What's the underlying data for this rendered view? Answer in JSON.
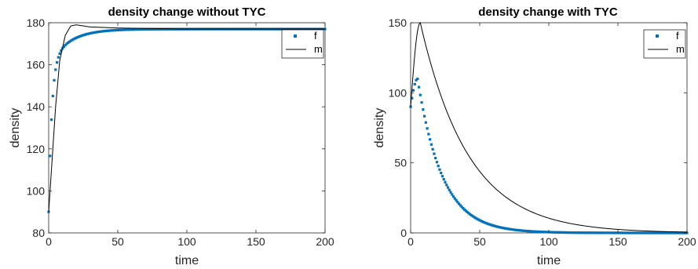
{
  "chart_data": [
    {
      "type": "scatter",
      "title": "density change without TYC",
      "xlabel": "time",
      "ylabel": "density",
      "xlim": [
        0,
        200
      ],
      "ylim": [
        80,
        180
      ],
      "xticks": [
        "0",
        "50",
        "100",
        "150",
        "200"
      ],
      "yticks": [
        "80",
        "100",
        "120",
        "140",
        "160",
        "180"
      ],
      "grid": false,
      "legend_position": "top-right",
      "series": [
        {
          "name": "f",
          "kind": "markers",
          "color": "#0072BD",
          "model": {
            "form": "saturating",
            "y0": 90,
            "ymax": 177,
            "tau_fast": 2.2,
            "tau_slow": 14,
            "w_fast": 0.8
          },
          "x": [
            0,
            1,
            2,
            3,
            4,
            5,
            6,
            8,
            10,
            12,
            15,
            20,
            30,
            50,
            100,
            150,
            200
          ],
          "y": [
            90,
            94,
            101,
            105,
            120,
            135,
            148,
            157,
            162,
            166,
            169,
            172,
            175,
            176.5,
            177,
            177,
            177
          ]
        },
        {
          "name": "m",
          "kind": "line",
          "color": "#000000",
          "x": [
            0,
            2,
            5,
            8,
            12,
            16,
            20,
            30,
            50,
            100,
            200
          ],
          "y": [
            90,
            110,
            140,
            162,
            174,
            178.5,
            179,
            178,
            177.5,
            177,
            177
          ]
        }
      ]
    },
    {
      "type": "scatter",
      "title": "density change with TYC",
      "xlabel": "time",
      "ylabel": "density",
      "xlim": [
        0,
        200
      ],
      "ylim": [
        0,
        150
      ],
      "xticks": [
        "0",
        "50",
        "100",
        "150",
        "200"
      ],
      "yticks": [
        "0",
        "50",
        "100",
        "150"
      ],
      "grid": false,
      "legend_position": "top-right",
      "series": [
        {
          "name": "f",
          "kind": "markers",
          "color": "#0072BD",
          "model": {
            "form": "rise-decay",
            "y0": 90,
            "peak": 110,
            "t_peak": 5,
            "tau": 18
          },
          "x": [
            0,
            2,
            5,
            10,
            20,
            30,
            50,
            75,
            100,
            150,
            200
          ],
          "y": [
            90,
            100,
            110,
            96,
            56,
            33,
            11,
            3,
            1,
            0,
            0
          ]
        },
        {
          "name": "m",
          "kind": "line",
          "color": "#000000",
          "model": {
            "form": "rise-decay",
            "y0": 90,
            "peak": 150,
            "t_peak": 7,
            "tau": 35
          },
          "x": [
            0,
            3,
            7,
            10,
            20,
            30,
            50,
            75,
            100,
            150,
            200
          ],
          "y": [
            90,
            125,
            150,
            138,
            100,
            78,
            48,
            24,
            11,
            2,
            0
          ]
        }
      ]
    }
  ]
}
